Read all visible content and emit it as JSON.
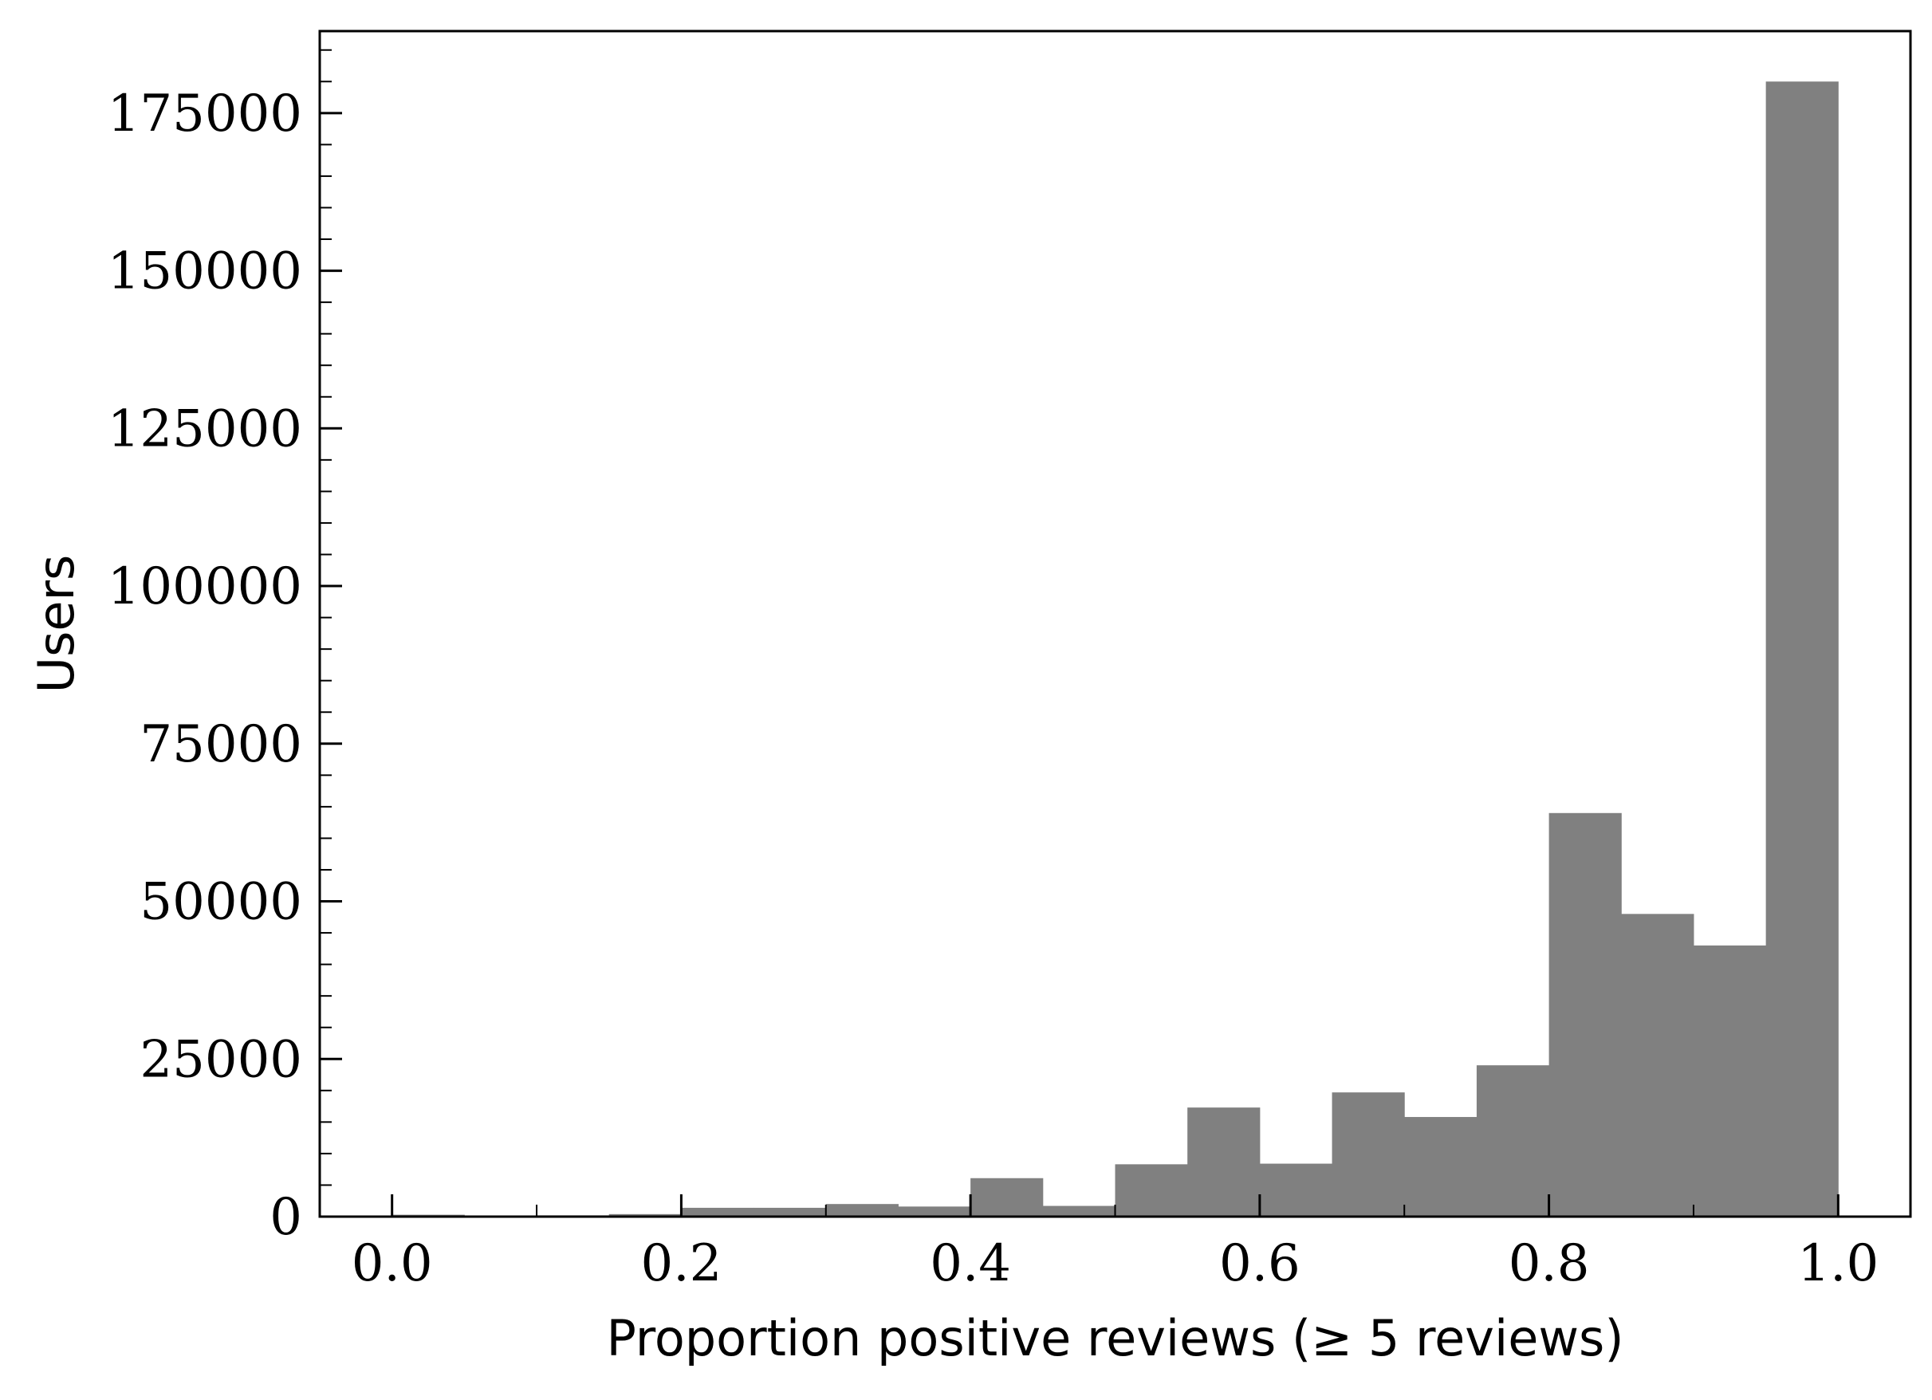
{
  "chart_data": {
    "type": "bar",
    "title": "",
    "xlabel": "Proportion positive reviews (≥ 5 reviews)",
    "ylabel": "Users",
    "xlim": [
      -0.05,
      1.05
    ],
    "ylim": [
      0,
      188000
    ],
    "xticks": [
      0.0,
      0.2,
      0.4,
      0.6,
      0.8,
      1.0
    ],
    "xtick_labels": [
      "0.0",
      "0.2",
      "0.4",
      "0.6",
      "0.8",
      "1.0"
    ],
    "yticks": [
      0,
      25000,
      50000,
      75000,
      100000,
      125000,
      150000,
      175000
    ],
    "ytick_labels": [
      "0",
      "25000",
      "50000",
      "75000",
      "100000",
      "125000",
      "150000",
      "175000"
    ],
    "bin_edges": [
      0.0,
      0.05,
      0.1,
      0.15,
      0.2,
      0.25,
      0.3,
      0.35,
      0.4,
      0.45,
      0.5,
      0.55,
      0.6,
      0.65,
      0.7,
      0.75,
      0.8,
      0.85,
      0.9,
      0.95,
      1.0
    ],
    "values": [
      300,
      100,
      200,
      400,
      1400,
      1400,
      2000,
      1600,
      6100,
      1700,
      8300,
      17300,
      8400,
      19700,
      15800,
      24000,
      64000,
      48000,
      43000,
      180000
    ],
    "grid": false,
    "colors": {
      "bar": "#808080",
      "axes": "#000000"
    }
  }
}
